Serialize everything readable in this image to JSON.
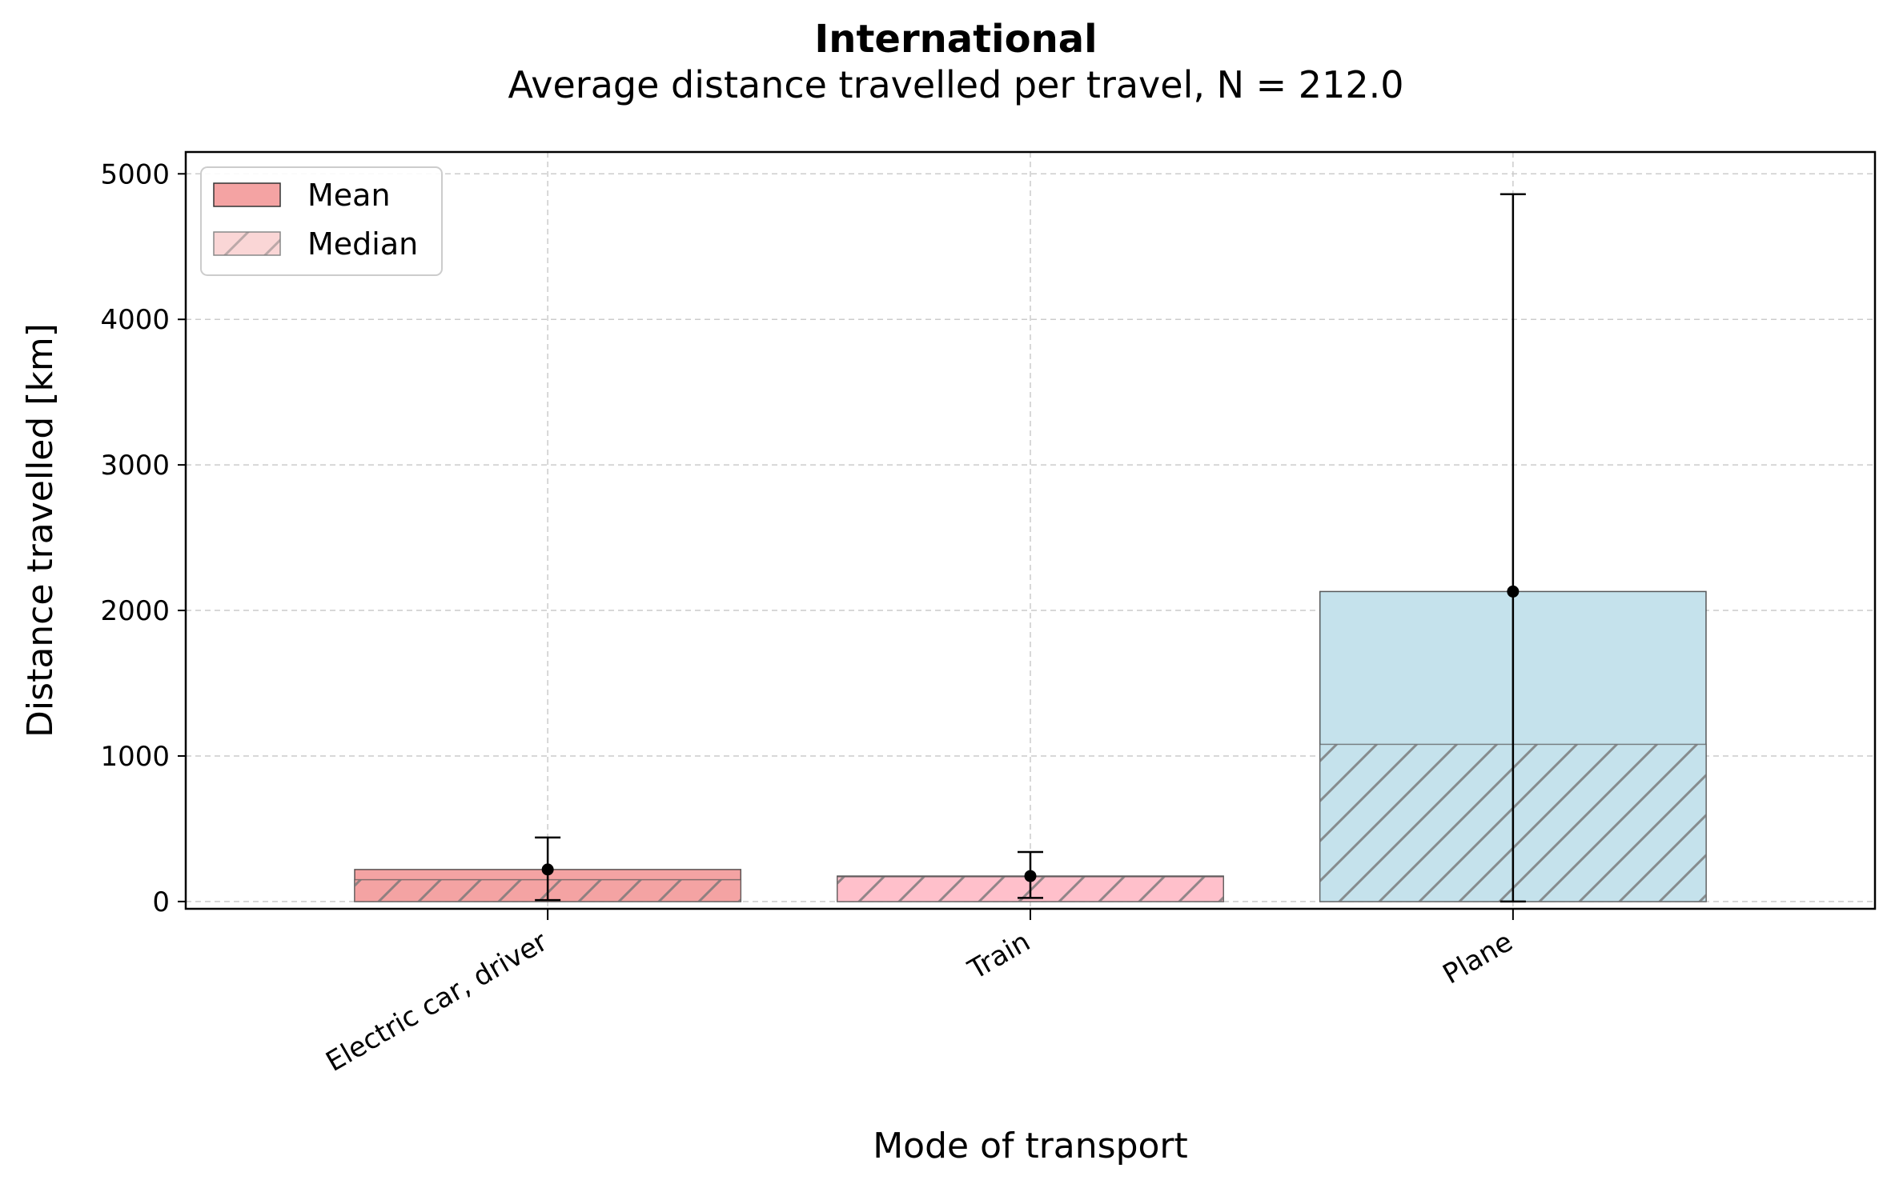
{
  "chart_data": {
    "type": "bar",
    "title": "International",
    "subtitle": "Average distance travelled per travel, N = 212.0",
    "xlabel": "Mode of transport",
    "ylabel": "Distance travelled [km]",
    "ylim": [
      -50,
      5150
    ],
    "yticks": [
      0,
      1000,
      2000,
      3000,
      4000,
      5000
    ],
    "grid": true,
    "legend_position": "top-left",
    "categories": [
      "Electric car, driver",
      "Train",
      "Plane"
    ],
    "colors": [
      "#f4a3a3",
      "#ffc0cb",
      "#c5e2ec"
    ],
    "hatch_color": "#777777",
    "series": [
      {
        "name": "Mean",
        "values": [
          220,
          175,
          2130
        ]
      },
      {
        "name": "Median",
        "values": [
          150,
          170,
          1080
        ]
      }
    ],
    "error_bars": {
      "lower": [
        10,
        25,
        0
      ],
      "upper": [
        440,
        340,
        4860
      ]
    }
  }
}
